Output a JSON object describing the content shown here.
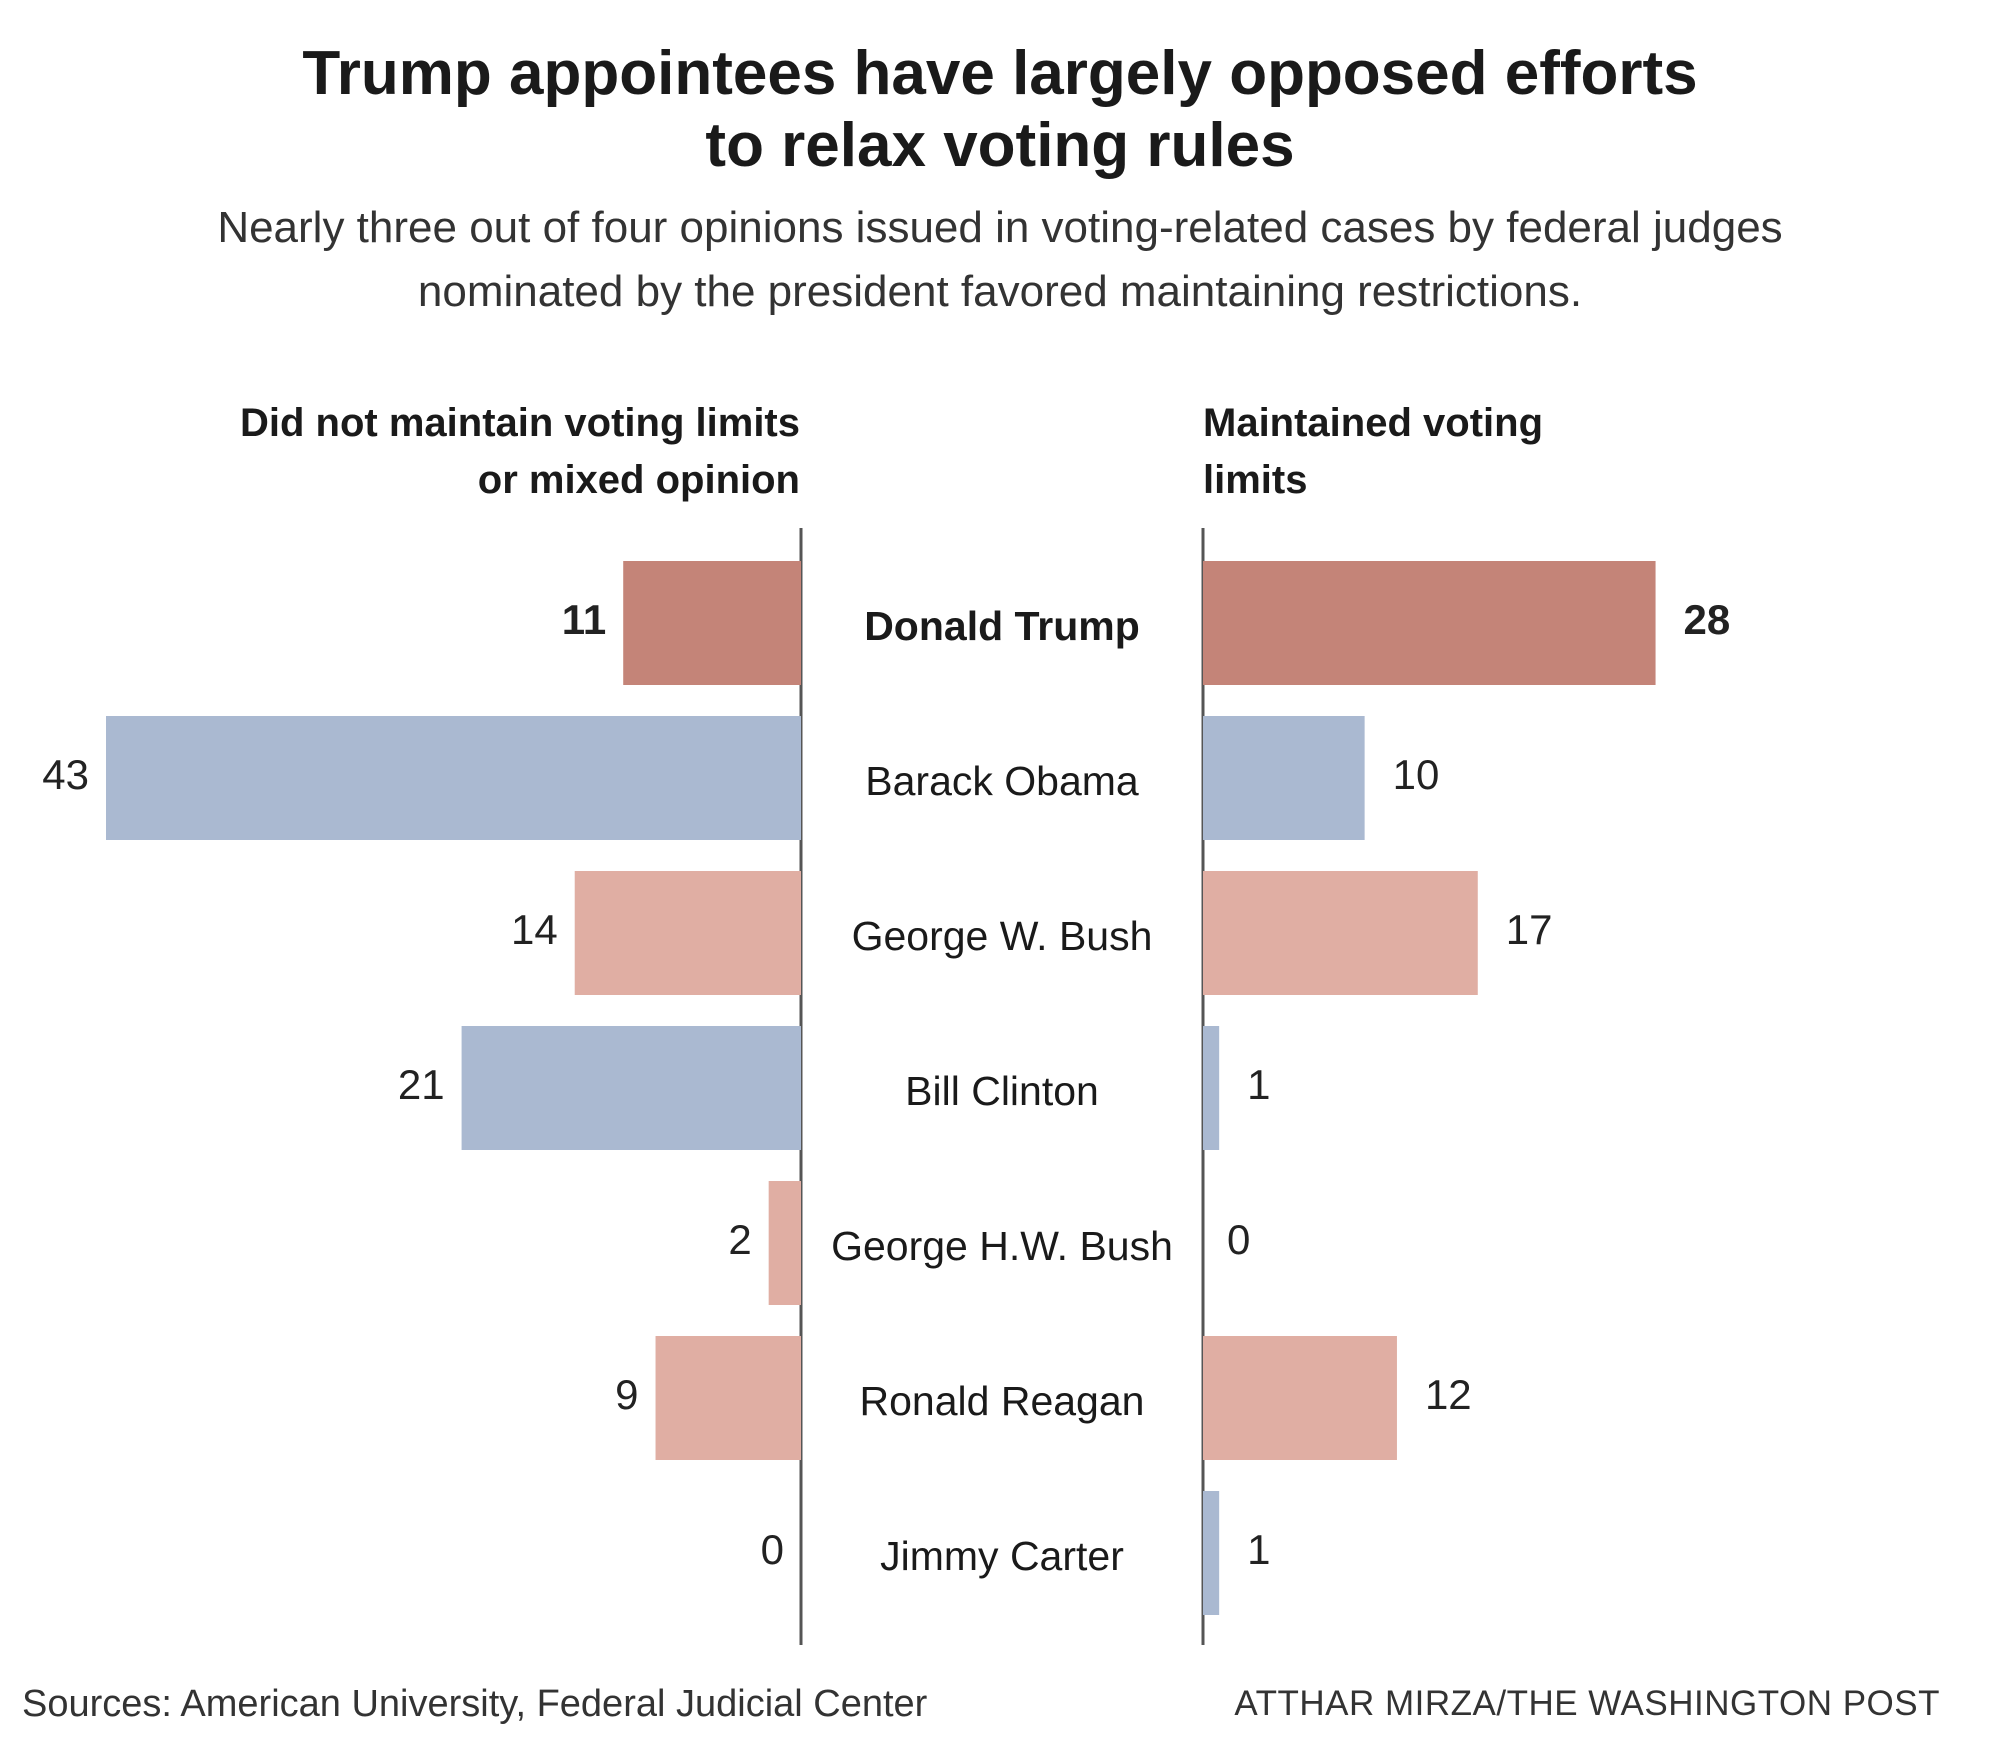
{
  "title_lines": [
    "Trump appointees have largely opposed efforts",
    "to relax voting rules"
  ],
  "subtitle_lines": [
    "Nearly three out of four opinions issued in voting-related cases by federal judges",
    "nominated by the president favored maintaining restrictions."
  ],
  "left_header_lines": [
    "Did not maintain voting limits",
    "or mixed opinion"
  ],
  "right_header_lines": [
    "Maintained voting",
    "limits"
  ],
  "footer": {
    "source": "Sources: American University, Federal Judicial Center",
    "credit": "ATTHAR MIRZA/THE WASHINGTON POST"
  },
  "colors": {
    "republican_highlight": "#c48478",
    "republican": "#e0aea3",
    "democrat": "#aab9d1",
    "axis": "#555555"
  },
  "chart_data": {
    "type": "bar",
    "orientation": "horizontal-diverging",
    "categories": [
      "Donald Trump",
      "Barack Obama",
      "George W. Bush",
      "Bill Clinton",
      "George H.W. Bush",
      "Ronald Reagan",
      "Jimmy Carter"
    ],
    "party": [
      "R",
      "D",
      "R",
      "D",
      "R",
      "R",
      "D"
    ],
    "highlight": [
      "Donald Trump"
    ],
    "series": [
      {
        "name": "Did not maintain voting limits or mixed opinion",
        "values": [
          11,
          43,
          14,
          21,
          2,
          9,
          0
        ]
      },
      {
        "name": "Maintained voting limits",
        "values": [
          28,
          10,
          17,
          1,
          0,
          12,
          1
        ]
      }
    ],
    "xlim": [
      0,
      43
    ]
  }
}
